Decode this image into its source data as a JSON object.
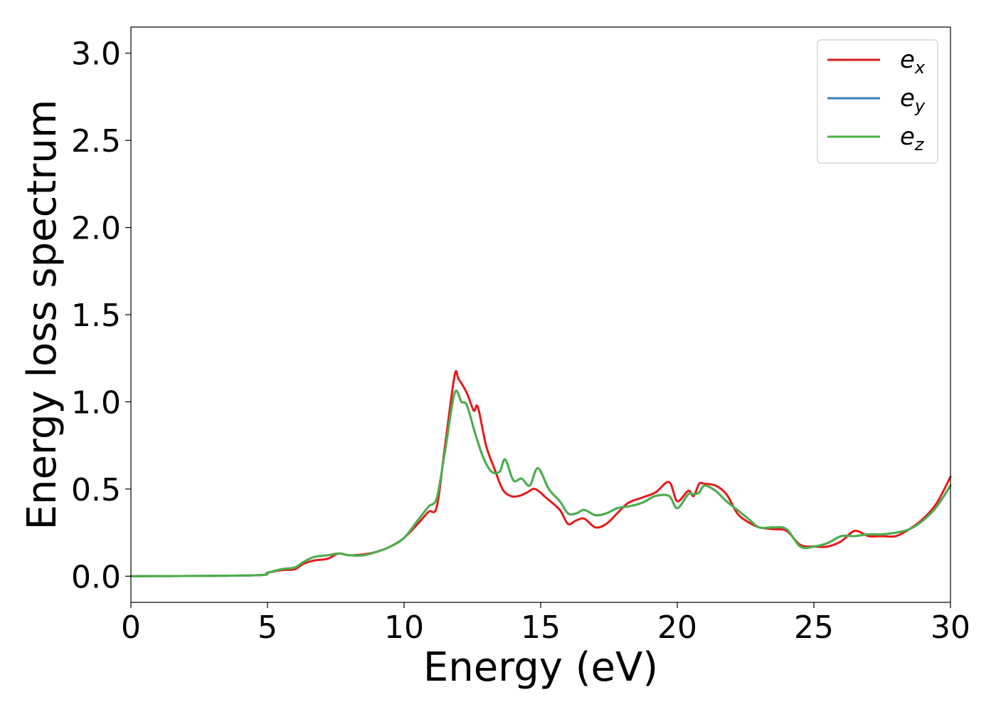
{
  "chart_data": {
    "type": "line",
    "title": "",
    "xlabel": "Energy (eV)",
    "ylabel": "Energy loss spectrum",
    "xlim": [
      0,
      30
    ],
    "ylim": [
      -0.15,
      3.15
    ],
    "xticks": [
      0,
      5,
      10,
      15,
      20,
      25,
      30
    ],
    "xtick_labels": [
      "0",
      "5",
      "10",
      "15",
      "20",
      "25",
      "30"
    ],
    "yticks": [
      0.0,
      0.5,
      1.0,
      1.5,
      2.0,
      2.5,
      3.0
    ],
    "ytick_labels": [
      "0.0",
      "0.5",
      "1.0",
      "1.5",
      "2.0",
      "2.5",
      "3.0"
    ],
    "grid": false,
    "legend_position": "top-right",
    "series": [
      {
        "name": "e_x",
        "label_main": "e",
        "label_sub": "x",
        "color": "#e41a1c",
        "x": [
          0,
          4.5,
          5.0,
          5.5,
          6.0,
          6.3,
          6.7,
          7.2,
          7.6,
          8.0,
          8.5,
          9.0,
          9.5,
          10.0,
          10.5,
          10.9,
          11.2,
          11.5,
          11.85,
          12.0,
          12.3,
          12.55,
          12.7,
          13.0,
          13.3,
          13.6,
          13.9,
          14.2,
          14.5,
          14.8,
          15.2,
          15.7,
          16.0,
          16.3,
          16.6,
          17.0,
          17.4,
          17.8,
          18.2,
          18.7,
          19.2,
          19.7,
          20.0,
          20.4,
          20.6,
          20.8,
          21.0,
          21.4,
          21.8,
          22.2,
          22.6,
          23.0,
          23.5,
          24.0,
          24.5,
          25.0,
          25.5,
          26.0,
          26.5,
          27.0,
          27.5,
          28.0,
          28.5,
          29.0,
          29.5,
          30.0
        ],
        "y": [
          0.0,
          0.005,
          0.02,
          0.035,
          0.04,
          0.07,
          0.09,
          0.1,
          0.13,
          0.12,
          0.125,
          0.14,
          0.17,
          0.22,
          0.3,
          0.37,
          0.4,
          0.75,
          1.15,
          1.13,
          1.05,
          0.95,
          0.97,
          0.75,
          0.62,
          0.5,
          0.46,
          0.46,
          0.48,
          0.5,
          0.45,
          0.38,
          0.3,
          0.32,
          0.33,
          0.28,
          0.3,
          0.36,
          0.42,
          0.45,
          0.48,
          0.54,
          0.43,
          0.49,
          0.46,
          0.53,
          0.53,
          0.52,
          0.47,
          0.36,
          0.31,
          0.28,
          0.27,
          0.26,
          0.18,
          0.17,
          0.17,
          0.2,
          0.26,
          0.23,
          0.23,
          0.23,
          0.27,
          0.33,
          0.42,
          0.57
        ]
      },
      {
        "name": "e_y",
        "label_main": "e",
        "label_sub": "y",
        "color": "#377eb8",
        "x": [
          0,
          4.5,
          5.0,
          5.5,
          6.0,
          6.3,
          6.7,
          7.2,
          7.6,
          8.0,
          8.5,
          9.0,
          9.5,
          10.0,
          10.5,
          10.9,
          11.2,
          11.5,
          11.85,
          12.1,
          12.3,
          12.6,
          12.9,
          13.2,
          13.5,
          13.7,
          14.0,
          14.3,
          14.6,
          14.9,
          15.3,
          15.7,
          16.0,
          16.3,
          16.6,
          17.0,
          17.4,
          17.8,
          18.2,
          18.7,
          19.2,
          19.7,
          20.0,
          20.4,
          20.6,
          20.8,
          21.0,
          21.4,
          21.8,
          22.2,
          22.6,
          23.0,
          23.5,
          24.0,
          24.5,
          25.0,
          25.5,
          26.0,
          26.5,
          27.0,
          27.5,
          28.0,
          28.5,
          29.0,
          29.5,
          30.0
        ],
        "y": [
          0.0,
          0.005,
          0.02,
          0.04,
          0.05,
          0.08,
          0.11,
          0.12,
          0.13,
          0.12,
          0.12,
          0.14,
          0.17,
          0.22,
          0.32,
          0.4,
          0.45,
          0.72,
          1.05,
          1.0,
          0.98,
          0.82,
          0.68,
          0.6,
          0.6,
          0.67,
          0.55,
          0.56,
          0.52,
          0.62,
          0.5,
          0.43,
          0.36,
          0.36,
          0.38,
          0.35,
          0.36,
          0.39,
          0.4,
          0.42,
          0.46,
          0.46,
          0.39,
          0.47,
          0.47,
          0.48,
          0.52,
          0.49,
          0.43,
          0.38,
          0.33,
          0.28,
          0.28,
          0.27,
          0.17,
          0.17,
          0.19,
          0.23,
          0.23,
          0.24,
          0.24,
          0.25,
          0.27,
          0.32,
          0.4,
          0.52
        ]
      },
      {
        "name": "e_z",
        "label_main": "e",
        "label_sub": "z",
        "color": "#4daf4a",
        "x": [
          0,
          4.5,
          5.0,
          5.5,
          6.0,
          6.3,
          6.7,
          7.2,
          7.6,
          8.0,
          8.5,
          9.0,
          9.5,
          10.0,
          10.5,
          10.9,
          11.2,
          11.5,
          11.85,
          12.1,
          12.3,
          12.6,
          12.9,
          13.2,
          13.5,
          13.7,
          14.0,
          14.3,
          14.6,
          14.9,
          15.3,
          15.7,
          16.0,
          16.3,
          16.6,
          17.0,
          17.4,
          17.8,
          18.2,
          18.7,
          19.2,
          19.7,
          20.0,
          20.4,
          20.6,
          20.8,
          21.0,
          21.4,
          21.8,
          22.2,
          22.6,
          23.0,
          23.5,
          24.0,
          24.5,
          25.0,
          25.5,
          26.0,
          26.5,
          27.0,
          27.5,
          28.0,
          28.5,
          29.0,
          29.5,
          30.0
        ],
        "y": [
          0.0,
          0.005,
          0.02,
          0.04,
          0.05,
          0.08,
          0.11,
          0.12,
          0.13,
          0.12,
          0.12,
          0.14,
          0.17,
          0.22,
          0.32,
          0.4,
          0.45,
          0.72,
          1.05,
          1.0,
          0.98,
          0.82,
          0.68,
          0.6,
          0.6,
          0.67,
          0.55,
          0.56,
          0.52,
          0.62,
          0.5,
          0.43,
          0.36,
          0.36,
          0.38,
          0.35,
          0.36,
          0.39,
          0.4,
          0.42,
          0.46,
          0.46,
          0.39,
          0.47,
          0.47,
          0.48,
          0.52,
          0.49,
          0.43,
          0.38,
          0.33,
          0.28,
          0.28,
          0.27,
          0.17,
          0.17,
          0.19,
          0.23,
          0.23,
          0.24,
          0.24,
          0.25,
          0.27,
          0.32,
          0.4,
          0.52
        ]
      }
    ]
  }
}
